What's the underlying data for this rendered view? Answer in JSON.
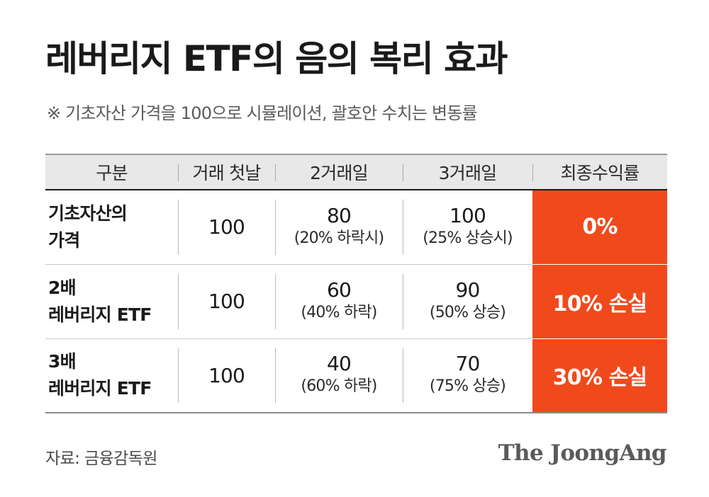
{
  "title": "레버리지 ETF의 음의 복리 효과",
  "subtitle": "※ 기초자산 가격을 100으로 시뮬레이션, 괄호안 수치는 변동률",
  "table": {
    "headers": [
      "구분",
      "거래 첫날",
      "2거래일",
      "3거래일",
      "최종수익률"
    ],
    "rows": [
      {
        "label_line1": "기초자산의",
        "label_line2": "가격",
        "day1": "100",
        "day2_value": "80",
        "day2_note": "(20% 하락시)",
        "day3_value": "100",
        "day3_note": "(25% 상승시)",
        "final": "0%"
      },
      {
        "label_line1": "2배",
        "label_line2": "레버리지 ETF",
        "day1": "100",
        "day2_value": "60",
        "day2_note": "(40% 하락)",
        "day3_value": "90",
        "day3_note": "(50% 상승)",
        "final": "10% 손실"
      },
      {
        "label_line1": "3배",
        "label_line2": "레버리지 ETF",
        "day1": "100",
        "day2_value": "40",
        "day2_note": "(60% 하락)",
        "day3_value": "70",
        "day3_note": "(75% 상승)",
        "final": "30% 손실"
      }
    ]
  },
  "source": "자료: 금융감독원",
  "brand": "The JoongAng",
  "colors": {
    "accent": "#f04a1c",
    "header_bg": "#e8e8e8",
    "text": "#1a1a1a"
  }
}
